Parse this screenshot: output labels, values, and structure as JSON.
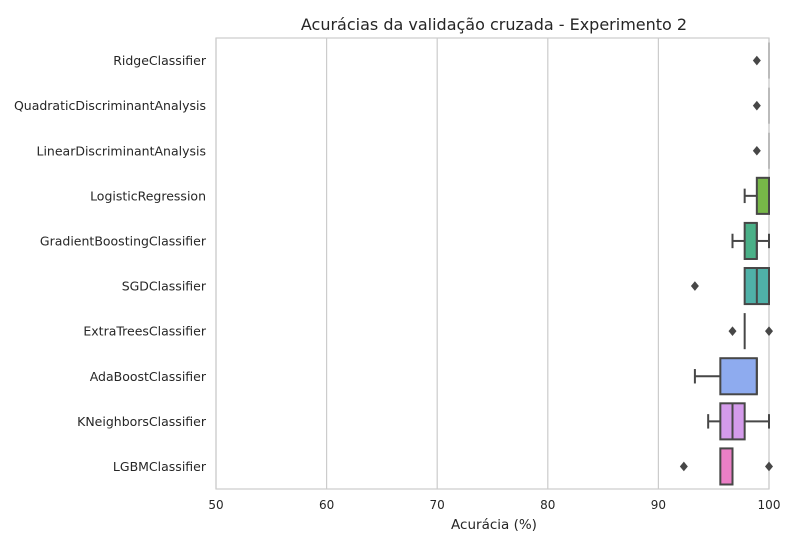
{
  "chart_data": {
    "type": "boxplot",
    "orientation": "horizontal",
    "title": "Acurácias da validação cruzada - Experimento 2",
    "xlabel": "Acurácia (%)",
    "ylabel": "",
    "xlim": [
      50,
      100
    ],
    "xticks": [
      "50",
      "60",
      "70",
      "80",
      "90",
      "100"
    ],
    "grid": "vertical",
    "categories": [
      "RidgeClassifier",
      "QuadraticDiscriminantAnalysis",
      "LinearDiscriminantAnalysis",
      "LogisticRegression",
      "GradientBoostingClassifier",
      "SGDClassifier",
      "ExtraTreesClassifier",
      "AdaBoostClassifier",
      "KNeighborsClassifier",
      "LGBMClassifier"
    ],
    "boxes": [
      {
        "whisker_low": 100,
        "q1": 100,
        "median": 100,
        "q3": 100,
        "whisker_high": 100,
        "outliers": [
          98.9
        ],
        "color": "#ea96a3"
      },
      {
        "whisker_low": 100,
        "q1": 100,
        "median": 100,
        "q3": 100,
        "whisker_high": 100,
        "outliers": [
          98.9
        ],
        "color": "#d8a560"
      },
      {
        "whisker_low": 100,
        "q1": 100,
        "median": 100,
        "q3": 100,
        "whisker_high": 100,
        "outliers": [
          98.9
        ],
        "color": "#a9b344"
      },
      {
        "whisker_low": 97.8,
        "q1": 98.9,
        "median": 100,
        "q3": 100,
        "whisker_high": 100,
        "outliers": [],
        "color": "#77b748"
      },
      {
        "whisker_low": 96.7,
        "q1": 97.8,
        "median": 98.9,
        "q3": 98.9,
        "whisker_high": 100,
        "outliers": [],
        "color": "#4ab088"
      },
      {
        "whisker_low": 97.8,
        "q1": 97.8,
        "median": 98.9,
        "q3": 100,
        "whisker_high": 100,
        "outliers": [
          93.3
        ],
        "color": "#4fb1a8"
      },
      {
        "whisker_low": 97.8,
        "q1": 97.8,
        "median": 97.8,
        "q3": 97.8,
        "whisker_high": 97.8,
        "outliers": [
          96.7,
          100
        ],
        "color": "#5aabc5"
      },
      {
        "whisker_low": 93.3,
        "q1": 95.6,
        "median": 98.9,
        "q3": 98.9,
        "whisker_high": 98.9,
        "outliers": [],
        "color": "#8eabef"
      },
      {
        "whisker_low": 94.5,
        "q1": 95.6,
        "median": 96.7,
        "q3": 97.8,
        "whisker_high": 100,
        "outliers": [],
        "color": "#d49beb"
      },
      {
        "whisker_low": 95.6,
        "q1": 95.6,
        "median": 96.7,
        "q3": 96.7,
        "whisker_high": 96.7,
        "outliers": [
          92.3,
          100
        ],
        "color": "#eb7fc6"
      }
    ]
  }
}
